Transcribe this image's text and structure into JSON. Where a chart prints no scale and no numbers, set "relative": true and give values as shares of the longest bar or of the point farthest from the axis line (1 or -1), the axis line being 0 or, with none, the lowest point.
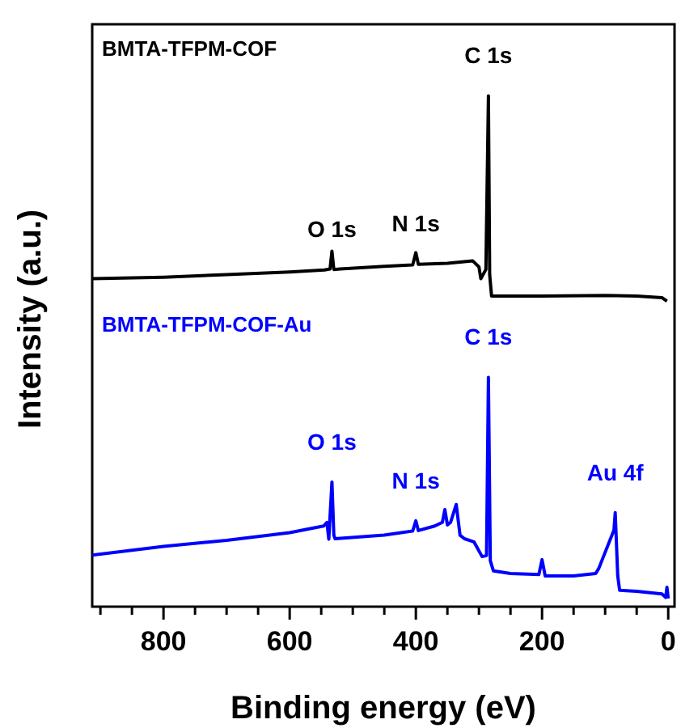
{
  "chart_data": {
    "type": "line",
    "relative": true,
    "xlabel": "Binding energy (eV)",
    "ylabel": "Intensity (a.u.)",
    "xlim": [
      913,
      -10
    ],
    "xticks": [
      {
        "value": 900,
        "label": null
      },
      {
        "value": 850,
        "label": null
      },
      800,
      {
        "value": 750,
        "label": null
      },
      {
        "value": 700,
        "label": null
      },
      {
        "value": 650,
        "label": null
      },
      600,
      {
        "value": 550,
        "label": null
      },
      {
        "value": 500,
        "label": null
      },
      {
        "value": 450,
        "label": null
      },
      400,
      {
        "value": 350,
        "label": null
      },
      {
        "value": 300,
        "label": null
      },
      {
        "value": 250,
        "label": null
      },
      200,
      {
        "value": 150,
        "label": null
      },
      {
        "value": 100,
        "label": null
      },
      {
        "value": 50,
        "label": null
      },
      0
    ],
    "tick_labels": "x",
    "legend": false,
    "marker": "none",
    "line_style": "solid",
    "series": [
      {
        "name": "BMTA-TFPM-COF",
        "color": "#000000",
        "x": [
          913,
          800,
          700,
          600,
          545,
          536,
          533,
          530,
          520,
          450,
          405,
          400,
          396,
          350,
          310,
          300,
          297,
          289,
          285,
          283,
          280,
          200,
          100,
          50,
          10,
          2
        ],
        "values": [
          0.642,
          0.645,
          0.65,
          0.655,
          0.659,
          0.661,
          0.696,
          0.66,
          0.661,
          0.666,
          0.669,
          0.693,
          0.67,
          0.672,
          0.677,
          0.665,
          0.642,
          0.66,
          1,
          0.65,
          0.608,
          0.608,
          0.609,
          0.608,
          0.605,
          0.598
        ]
      },
      {
        "name": "BMTA-TFPM-COF-Au",
        "color": "#0000ff",
        "x": [
          913,
          800,
          700,
          600,
          546,
          541,
          538,
          533,
          530,
          528,
          450,
          405,
          400,
          396,
          370,
          358,
          354,
          350,
          345,
          336,
          330,
          323,
          308,
          295,
          288,
          285,
          282,
          277,
          250,
          205,
          200,
          195,
          150,
          115,
          110,
          86,
          84,
          80,
          77,
          50,
          10,
          4,
          2,
          0
        ],
        "values": [
          0.101,
          0.118,
          0.13,
          0.145,
          0.158,
          0.165,
          0.132,
          0.244,
          0.14,
          0.133,
          0.14,
          0.148,
          0.168,
          0.149,
          0.158,
          0.165,
          0.19,
          0.16,
          0.165,
          0.2,
          0.14,
          0.133,
          0.127,
          0.098,
          0.1,
          0.449,
          0.09,
          0.07,
          0.065,
          0.063,
          0.092,
          0.06,
          0.06,
          0.065,
          0.075,
          0.15,
          0.184,
          0.06,
          0.032,
          0.03,
          0.025,
          0.018,
          0.038,
          0.016
        ]
      }
    ],
    "annotations": [
      {
        "text": "C 1s",
        "x": 285,
        "y": 1
      },
      {
        "text": "O 1s",
        "x": 533,
        "y": 0.661
      },
      {
        "text": "N 1s",
        "x": 400,
        "y": 0.671
      },
      {
        "text": "C 1s",
        "x": 285,
        "y": 0.449
      },
      {
        "text": "O 1s",
        "x": 533,
        "y": 0.244
      },
      {
        "text": "N 1s",
        "x": 400,
        "y": 0.168
      },
      {
        "text": "Au 4f",
        "x": 84,
        "y": 0.184
      }
    ]
  }
}
